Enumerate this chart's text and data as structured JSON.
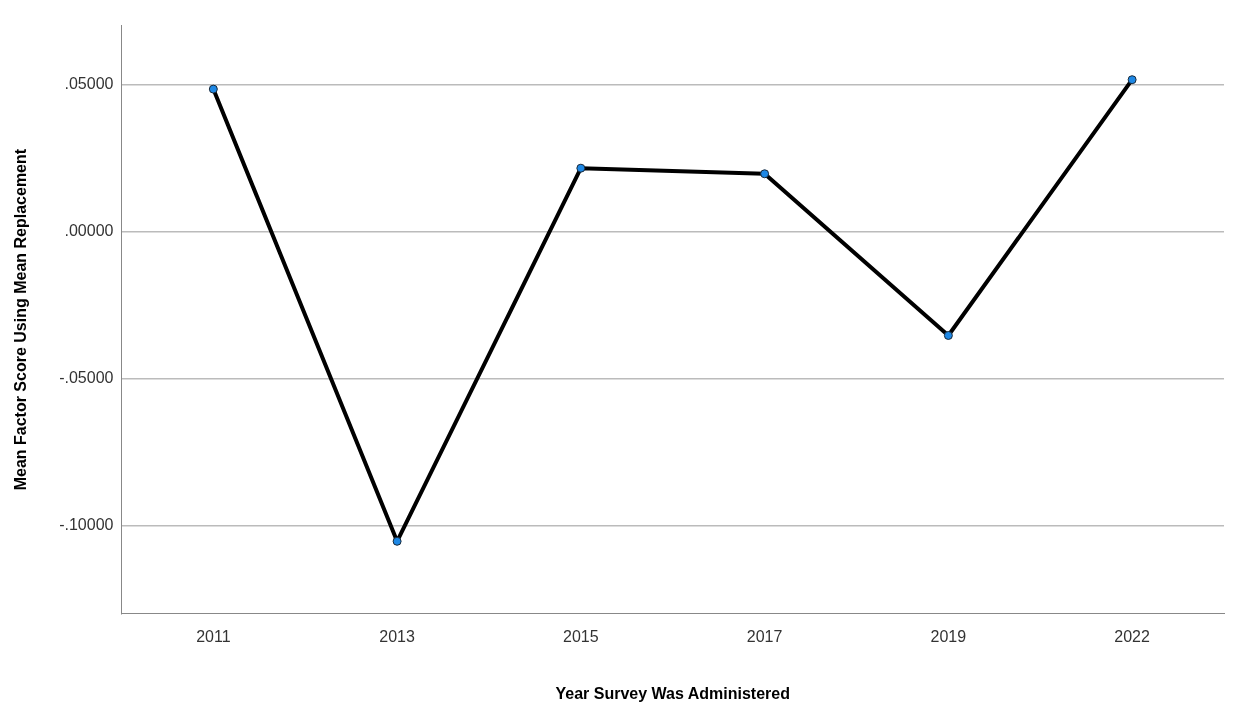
{
  "chart_data": {
    "type": "line",
    "xlabel": "Year Survey Was Administered",
    "ylabel": "Mean Factor Score Using Mean Replacement",
    "categories": [
      "2011",
      "2013",
      "2015",
      "2017",
      "2019",
      "2022"
    ],
    "series": [
      {
        "color": "#000000",
        "values": [
          0.0484,
          -0.1054,
          0.0215,
          0.0196,
          -0.0354,
          0.0516
        ]
      }
    ],
    "ylim": [
      -0.13,
      0.07
    ],
    "yticks": [
      {
        "value": -0.1,
        "label": "-.10000"
      },
      {
        "value": -0.05,
        "label": "-.05000"
      },
      {
        "value": 0,
        "label": ".00000"
      },
      {
        "value": 0.05,
        "label": ".05000"
      }
    ],
    "grid": "y",
    "legend": false,
    "marker": "circle",
    "line_style": "solid"
  }
}
